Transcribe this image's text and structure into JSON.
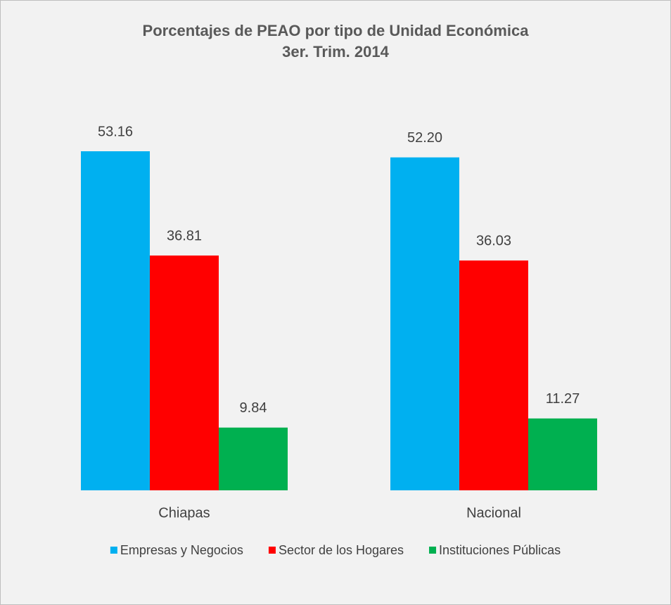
{
  "chart_data": {
    "type": "bar",
    "title": "Porcentajes de PEAO por tipo de Unidad Económica",
    "subtitle": "3er. Trim. 2014",
    "categories": [
      "Chiapas",
      "Nacional"
    ],
    "series": [
      {
        "name": "Empresas y Negocios",
        "color": "#00b0f0",
        "values": [
          53.16,
          52.2
        ],
        "value_labels": [
          "53.16",
          "52.20"
        ]
      },
      {
        "name": "Sector de los Hogares",
        "color": "#ff0000",
        "values": [
          36.81,
          36.03
        ],
        "value_labels": [
          "36.81",
          "36.03"
        ]
      },
      {
        "name": "Instituciones Públicas",
        "color": "#00b050",
        "values": [
          9.84,
          11.27
        ],
        "value_labels": [
          "9.84",
          "11.27"
        ]
      }
    ],
    "ylim": [
      0,
      60
    ],
    "legend": "bottom"
  }
}
